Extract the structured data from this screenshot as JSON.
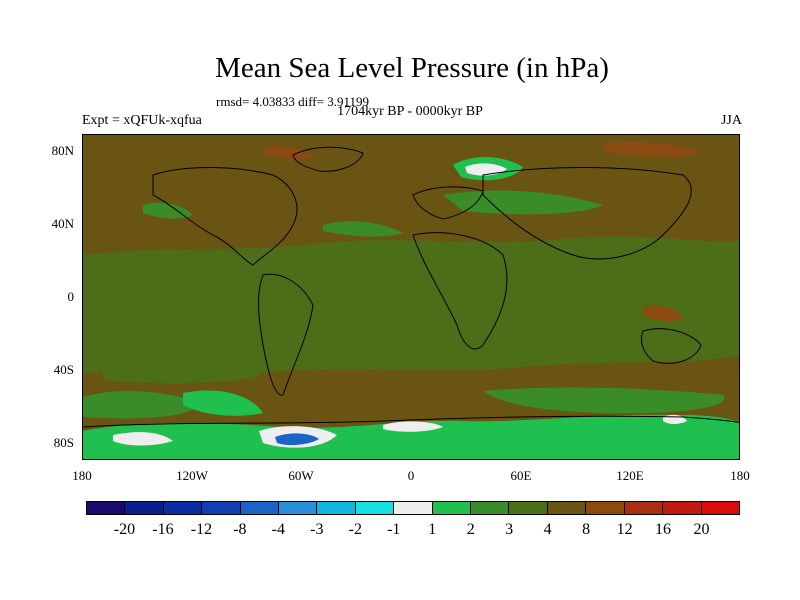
{
  "title": "Mean Sea Level Pressure (in hPa)",
  "stats": "rmsd= 4.03833 diff= 3.91199",
  "period": "1704kyr BP - 0000kyr BP",
  "experiment": "Expt = xQFUk-xqfua",
  "season": "JJA",
  "lat_labels": [
    "80N",
    "40N",
    "0",
    "40S",
    "80S"
  ],
  "lon_labels": [
    "180",
    "120W",
    "60W",
    "0",
    "60E",
    "120E",
    "180"
  ],
  "colorbar": {
    "labels": [
      "-20",
      "-16",
      "-12",
      "-8",
      "-4",
      "-3",
      "-2",
      "-1",
      "1",
      "2",
      "3",
      "4",
      "8",
      "12",
      "16",
      "20"
    ],
    "colors": [
      "#1a0a6b",
      "#0a1e8c",
      "#0a2ca0",
      "#1040b0",
      "#1a64c8",
      "#2a90d8",
      "#14b4e0",
      "#18e0e0",
      "#eeeeee",
      "#20c050",
      "#3a8c28",
      "#4c6e18",
      "#6a5414",
      "#8c4a10",
      "#a83010",
      "#c01a10",
      "#d80c0c"
    ]
  },
  "colors": {
    "background_field": "#6a5414",
    "tropics_field": "#4c6e18",
    "positive_weak": "#3a8c28",
    "positive_medium": "#20c050",
    "low_near_zero": "#eeeeee",
    "low_moderate": "#1a64c8",
    "high_strong": "#8c4a10"
  }
}
